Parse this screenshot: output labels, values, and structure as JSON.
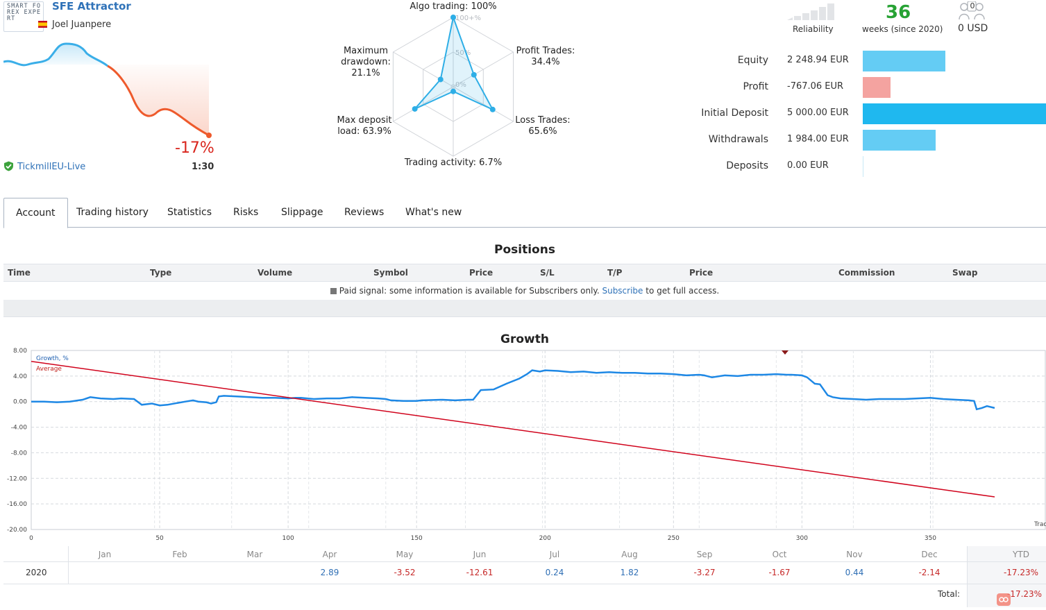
{
  "header": {
    "logo_text": "SMART FOREX EXPERT",
    "signal_name": "SFE Attractor",
    "author": "Joel Juanpere",
    "broker": "TickmillEU-Live",
    "growth_pct": "-17%",
    "leverage": "1:30",
    "colors": {
      "up": "#3aaee8",
      "down": "#ee5a2c"
    }
  },
  "radar": {
    "axes": [
      {
        "label": "Algo trading: 100%",
        "value": 100
      },
      {
        "label": "Profit Trades:\n34.4%",
        "value": 34.4
      },
      {
        "label": "Loss Trades:\n65.6%",
        "value": 65.6
      },
      {
        "label": "Trading activity: 6.7%",
        "value": 6.7
      },
      {
        "label": "Max deposit\nload: 63.9%",
        "value": 63.9
      },
      {
        "label": "Maximum\ndrawdown:\n21.1%",
        "value": 21.1
      }
    ],
    "scale_labels": [
      "100+%",
      "50%",
      "0%"
    ]
  },
  "summary": {
    "reliability_label": "Reliability",
    "weeks_value": "36",
    "weeks_label": "weeks (since 2020)",
    "subscribers_count": "0",
    "subscribers_label": "0 USD"
  },
  "stats": [
    {
      "label": "Equity",
      "value": "2 248.94 EUR",
      "fraction": 0.45,
      "color": "#64ccf4"
    },
    {
      "label": "Profit",
      "value": "-767.06 EUR",
      "fraction": 0.153,
      "color": "#f4a3a0"
    },
    {
      "label": "Initial Deposit",
      "value": "5 000.00 EUR",
      "fraction": 1.0,
      "color": "#1fb8ef"
    },
    {
      "label": "Withdrawals",
      "value": "1 984.00 EUR",
      "fraction": 0.397,
      "color": "#64ccf4"
    },
    {
      "label": "Deposits",
      "value": "0.00 EUR",
      "fraction": 0.0,
      "color": "#64ccf4"
    }
  ],
  "tabs": [
    {
      "label": "Account",
      "active": true
    },
    {
      "label": "Trading history"
    },
    {
      "label": "Statistics"
    },
    {
      "label": "Risks"
    },
    {
      "label": "Slippage"
    },
    {
      "label": "Reviews"
    },
    {
      "label": "What's new"
    }
  ],
  "positions": {
    "title": "Positions",
    "columns": [
      "Time",
      "Type",
      "Volume",
      "Symbol",
      "Price",
      "S/L",
      "T/P",
      "Price",
      "Commission",
      "Swap"
    ],
    "note_prefix": "Paid signal: some information is available for Subscribers only.",
    "note_link": "Subscribe",
    "note_suffix": "to get full access."
  },
  "growth": {
    "title": "Growth",
    "legend_growth": "Growth, %",
    "legend_average": "Average",
    "corner_label": "Trac",
    "chart_data": {
      "type": "line",
      "xlim": [
        0,
        395
      ],
      "ylim": [
        -20,
        8
      ],
      "x_ticks": [
        0,
        50,
        100,
        150,
        200,
        250,
        300,
        350
      ],
      "y_ticks": [
        "8.00",
        "4.00",
        "0.00",
        "-4.00",
        "-8.00",
        "-12.00",
        "-16.00",
        "-20.00"
      ],
      "series": [
        {
          "name": "Growth, %",
          "color": "#1e88e5",
          "points": [
            [
              0,
              0
            ],
            [
              5,
              0
            ],
            [
              10,
              -0.1
            ],
            [
              15,
              0
            ],
            [
              20,
              0.3
            ],
            [
              23,
              0.7
            ],
            [
              27,
              0.5
            ],
            [
              32,
              0.4
            ],
            [
              35,
              0.5
            ],
            [
              40,
              0.4
            ],
            [
              43,
              -0.5
            ],
            [
              47,
              -0.3
            ],
            [
              50,
              -0.6
            ],
            [
              53,
              -0.5
            ],
            [
              57,
              -0.2
            ],
            [
              60,
              0
            ],
            [
              63,
              0.2
            ],
            [
              65,
              0
            ],
            [
              68,
              -0.1
            ],
            [
              70,
              -0.3
            ],
            [
              72,
              -0.1
            ],
            [
              73,
              0.8
            ],
            [
              75,
              0.9
            ],
            [
              80,
              0.8
            ],
            [
              85,
              0.7
            ],
            [
              90,
              0.6
            ],
            [
              95,
              0.6
            ],
            [
              100,
              0.5
            ],
            [
              103,
              0.6
            ],
            [
              105,
              0.6
            ],
            [
              110,
              0.4
            ],
            [
              115,
              0.5
            ],
            [
              120,
              0.5
            ],
            [
              125,
              0.7
            ],
            [
              130,
              0.6
            ],
            [
              135,
              0.5
            ],
            [
              138,
              0.4
            ],
            [
              140,
              0.2
            ],
            [
              145,
              0.1
            ],
            [
              150,
              0.1
            ],
            [
              152,
              0.2
            ],
            [
              160,
              0.3
            ],
            [
              165,
              0.2
            ],
            [
              170,
              0.3
            ],
            [
              172,
              0.3
            ],
            [
              175,
              1.8
            ],
            [
              180,
              1.9
            ],
            [
              185,
              2.8
            ],
            [
              190,
              3.6
            ],
            [
              193,
              4.3
            ],
            [
              195,
              4.9
            ],
            [
              198,
              4.7
            ],
            [
              200,
              4.9
            ],
            [
              205,
              4.8
            ],
            [
              210,
              4.6
            ],
            [
              215,
              4.7
            ],
            [
              220,
              4.5
            ],
            [
              225,
              4.6
            ],
            [
              230,
              4.5
            ],
            [
              235,
              4.5
            ],
            [
              240,
              4.4
            ],
            [
              245,
              4.4
            ],
            [
              250,
              4.3
            ],
            [
              255,
              4.1
            ],
            [
              260,
              4.2
            ],
            [
              262,
              4.1
            ],
            [
              265,
              3.8
            ],
            [
              270,
              4.1
            ],
            [
              275,
              4.0
            ],
            [
              280,
              4.2
            ],
            [
              282,
              4.2
            ],
            [
              285,
              4.2
            ],
            [
              290,
              4.3
            ],
            [
              294,
              4.2
            ],
            [
              296,
              4.2
            ],
            [
              300,
              4.1
            ],
            [
              302,
              3.8
            ],
            [
              305,
              2.8
            ],
            [
              307,
              2.7
            ],
            [
              310,
              1.0
            ],
            [
              312,
              0.7
            ],
            [
              315,
              0.5
            ],
            [
              320,
              0.4
            ],
            [
              325,
              0.3
            ],
            [
              330,
              0.4
            ],
            [
              335,
              0.4
            ],
            [
              340,
              0.4
            ],
            [
              345,
              0.5
            ],
            [
              350,
              0.6
            ],
            [
              355,
              0.4
            ],
            [
              360,
              0.3
            ],
            [
              365,
              0.2
            ],
            [
              367,
              0.1
            ],
            [
              368,
              -1.2
            ],
            [
              370,
              -1.0
            ],
            [
              372,
              -0.7
            ],
            [
              375,
              -1.0
            ]
          ]
        },
        {
          "name": "Average",
          "color": "#d0021b",
          "points": [
            [
              0,
              6.3
            ],
            [
              375,
              -14.9
            ]
          ]
        }
      ]
    }
  },
  "monthly": {
    "months": [
      "Jan",
      "Feb",
      "Mar",
      "Apr",
      "May",
      "Jun",
      "Jul",
      "Aug",
      "Sep",
      "Oct",
      "Nov",
      "Dec"
    ],
    "ytd_label": "YTD",
    "year": "2020",
    "values": [
      "",
      "",
      "",
      "2.89",
      "-3.52",
      "-12.61",
      "0.24",
      "1.82",
      "-3.27",
      "-1.67",
      "0.44",
      "-2.14"
    ],
    "ytd_value": "-17.23%",
    "total_label": "Total:",
    "total_value": "-17.23%"
  }
}
